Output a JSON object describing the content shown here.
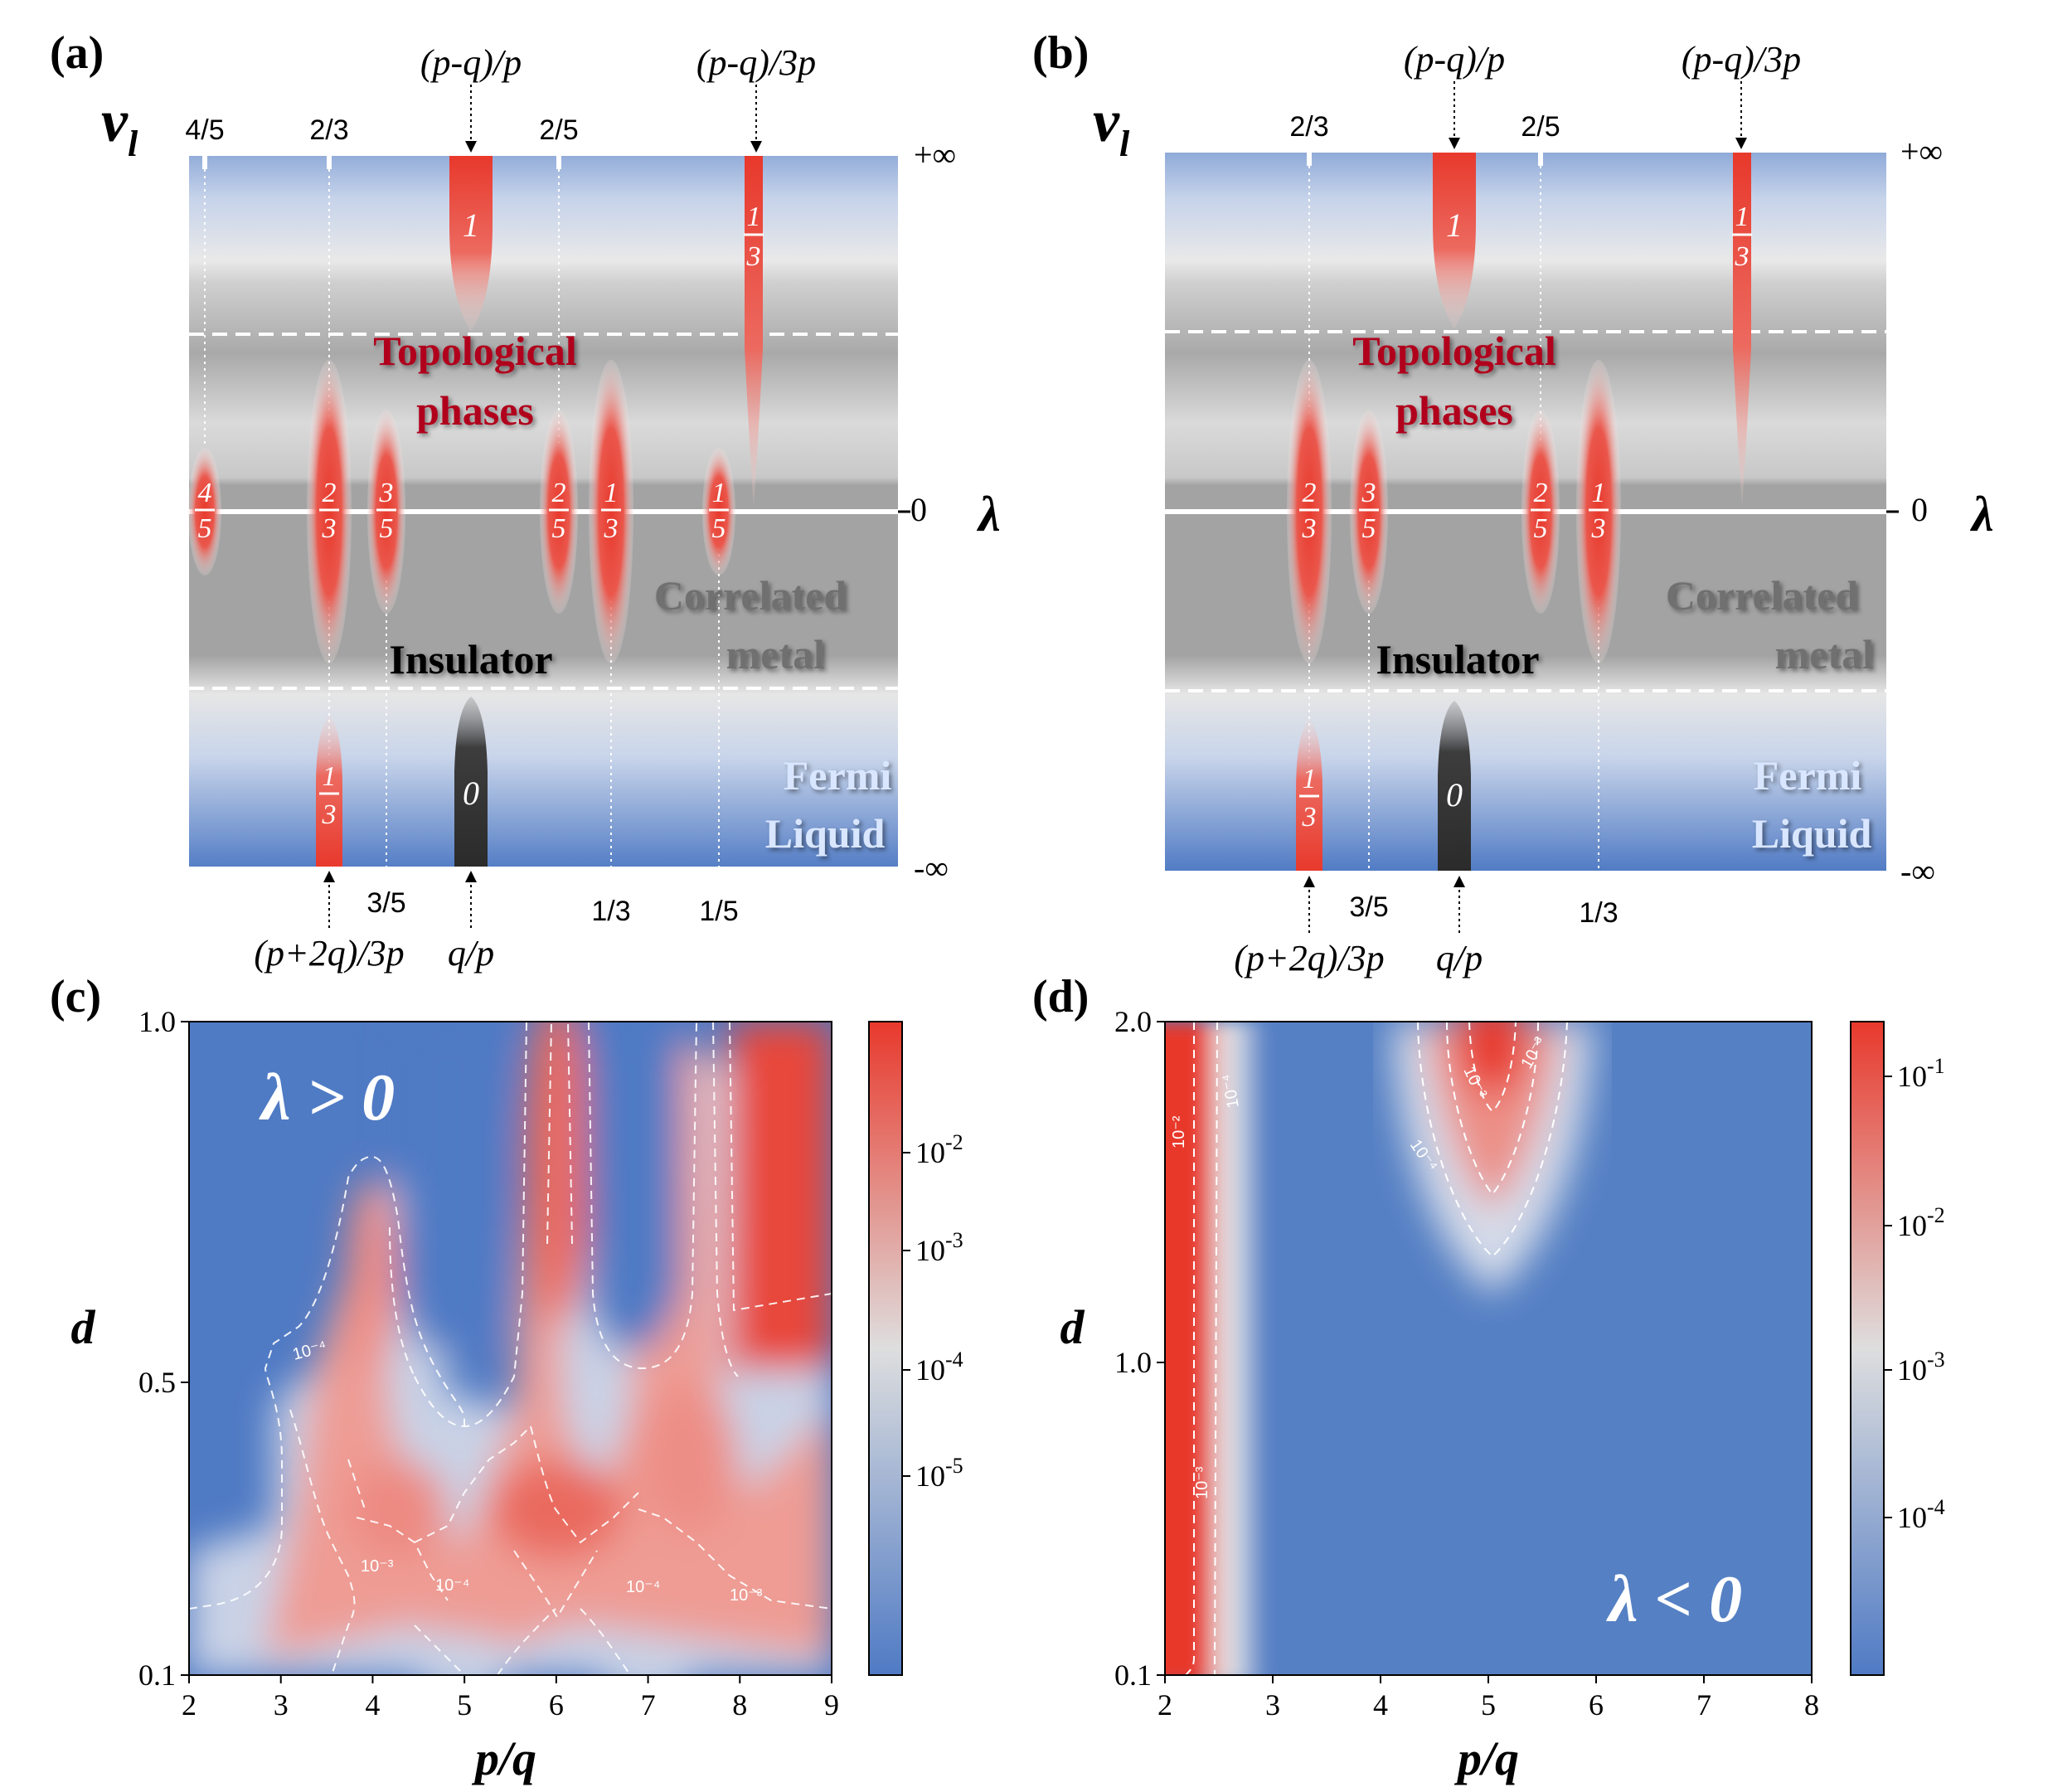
{
  "figure": {
    "panel_labels": [
      "(a)",
      "(b)",
      "(c)",
      "(d)"
    ],
    "schematic": {
      "vertical_axis_symbol": "ν",
      "vertical_axis_subscript": "l",
      "horizontal_axis_symbol": "λ",
      "plus_infinity": "+∞",
      "minus_infinity": "-∞",
      "zero": "0",
      "region_topological": [
        "Topological",
        "phases"
      ],
      "region_correlated": [
        "Correlated",
        "metal"
      ],
      "region_insulator": "Insulator",
      "region_fermi": [
        "Fermi",
        "Liquid"
      ],
      "annot_pq_p": "(p-q)/p",
      "annot_pq_3p": "(p-q)/3p",
      "annot_p2q_3p": "(p+2q)/3p",
      "annot_q_p": "q/p",
      "frac_num": "1",
      "frac_den3": "3",
      "frac_den5": "5",
      "frac_num2": "2",
      "frac_num3": "3",
      "frac_num4": "4",
      "phase_one": "1",
      "phase_zero": "0",
      "a_top_ticks": [
        "4/5",
        "2/3",
        "2/5"
      ],
      "a_bottom_ticks": [
        "3/5",
        "1/3",
        "1/5"
      ],
      "b_top_ticks": [
        "2/3",
        "2/5"
      ],
      "b_bottom_ticks": [
        "3/5",
        "1/3"
      ]
    },
    "panel_c": {
      "annotation": "λ > 0",
      "xlabel": "p/q",
      "ylabel": "d",
      "xticks": [
        "2",
        "3",
        "4",
        "5",
        "6",
        "7",
        "8",
        "9"
      ],
      "yticks": [
        "1.0",
        "0.5",
        "0.1"
      ],
      "colorbar_ticks": [
        "10-2",
        "10-3",
        "10-4",
        "10-5"
      ],
      "contour_labels": [
        "10⁻⁴",
        "10⁻³",
        "10⁻⁴",
        "10⁻⁴",
        "10⁻³"
      ]
    },
    "panel_d": {
      "annotation": "λ < 0",
      "xlabel": "p/q",
      "ylabel": "d",
      "xticks": [
        "2",
        "3",
        "4",
        "5",
        "6",
        "7",
        "8"
      ],
      "yticks": [
        "2.0",
        "1.0",
        "0.1"
      ],
      "colorbar_ticks": [
        "10-1",
        "10-2",
        "10-3",
        "10-4"
      ],
      "contour_labels": [
        "10⁻²",
        "10⁻⁴",
        "10⁻³",
        "10⁻⁴",
        "10⁻³",
        "10⁻³"
      ]
    },
    "colors": {
      "blue": "#4f7ac4",
      "red": "#e8392c",
      "gray": "#a3a3a3",
      "dark_red_text": "#b0001c",
      "gray_text": "#707070",
      "fermi_text": "#d9e6ff"
    }
  }
}
